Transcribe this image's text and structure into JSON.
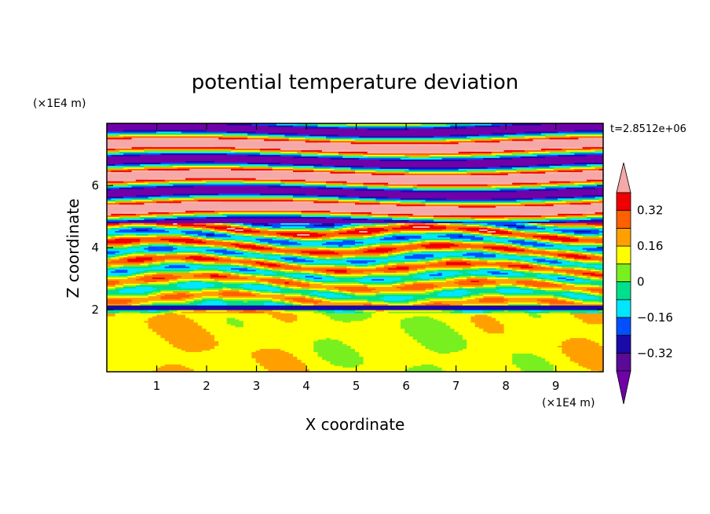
{
  "chart_data": {
    "type": "heatmap",
    "title": "potential temperature deviation",
    "xlabel": "X coordinate",
    "ylabel": "Z coordinate",
    "x_unit": "(×1E4 m)",
    "y_unit": "(×1E4 m)",
    "time_label": "t=2.8512e+06",
    "xlim": [
      0,
      9.95
    ],
    "ylim": [
      0,
      8
    ],
    "xticks": [
      1,
      2,
      3,
      4,
      5,
      6,
      7,
      8,
      9
    ],
    "yticks": [
      2,
      4,
      6
    ],
    "xtick_labels": [
      "1",
      "2",
      "3",
      "4",
      "5",
      "6",
      "7",
      "8",
      "9"
    ],
    "ytick_labels": [
      "2",
      "4",
      "6"
    ],
    "colorbar": {
      "levels": [
        -0.4,
        -0.32,
        -0.24,
        -0.16,
        -0.08,
        0,
        0.08,
        0.16,
        0.24,
        0.32,
        0.4
      ],
      "colors": [
        "#5a0a96",
        "#1a0aa8",
        "#0050ff",
        "#00e6ff",
        "#00e08c",
        "#78f020",
        "#ffff00",
        "#ffa000",
        "#ff6000",
        "#f00000",
        "#ffb0b0",
        "#f0a0a0"
      ],
      "under_color": "#7000a8",
      "over_color": "#f4a8a8",
      "tick_values": [
        0.32,
        0.16,
        0,
        -0.16,
        -0.32
      ],
      "tick_labels": [
        "0.32",
        "0.16",
        "0",
        "−0.16",
        "−0.32"
      ]
    }
  }
}
